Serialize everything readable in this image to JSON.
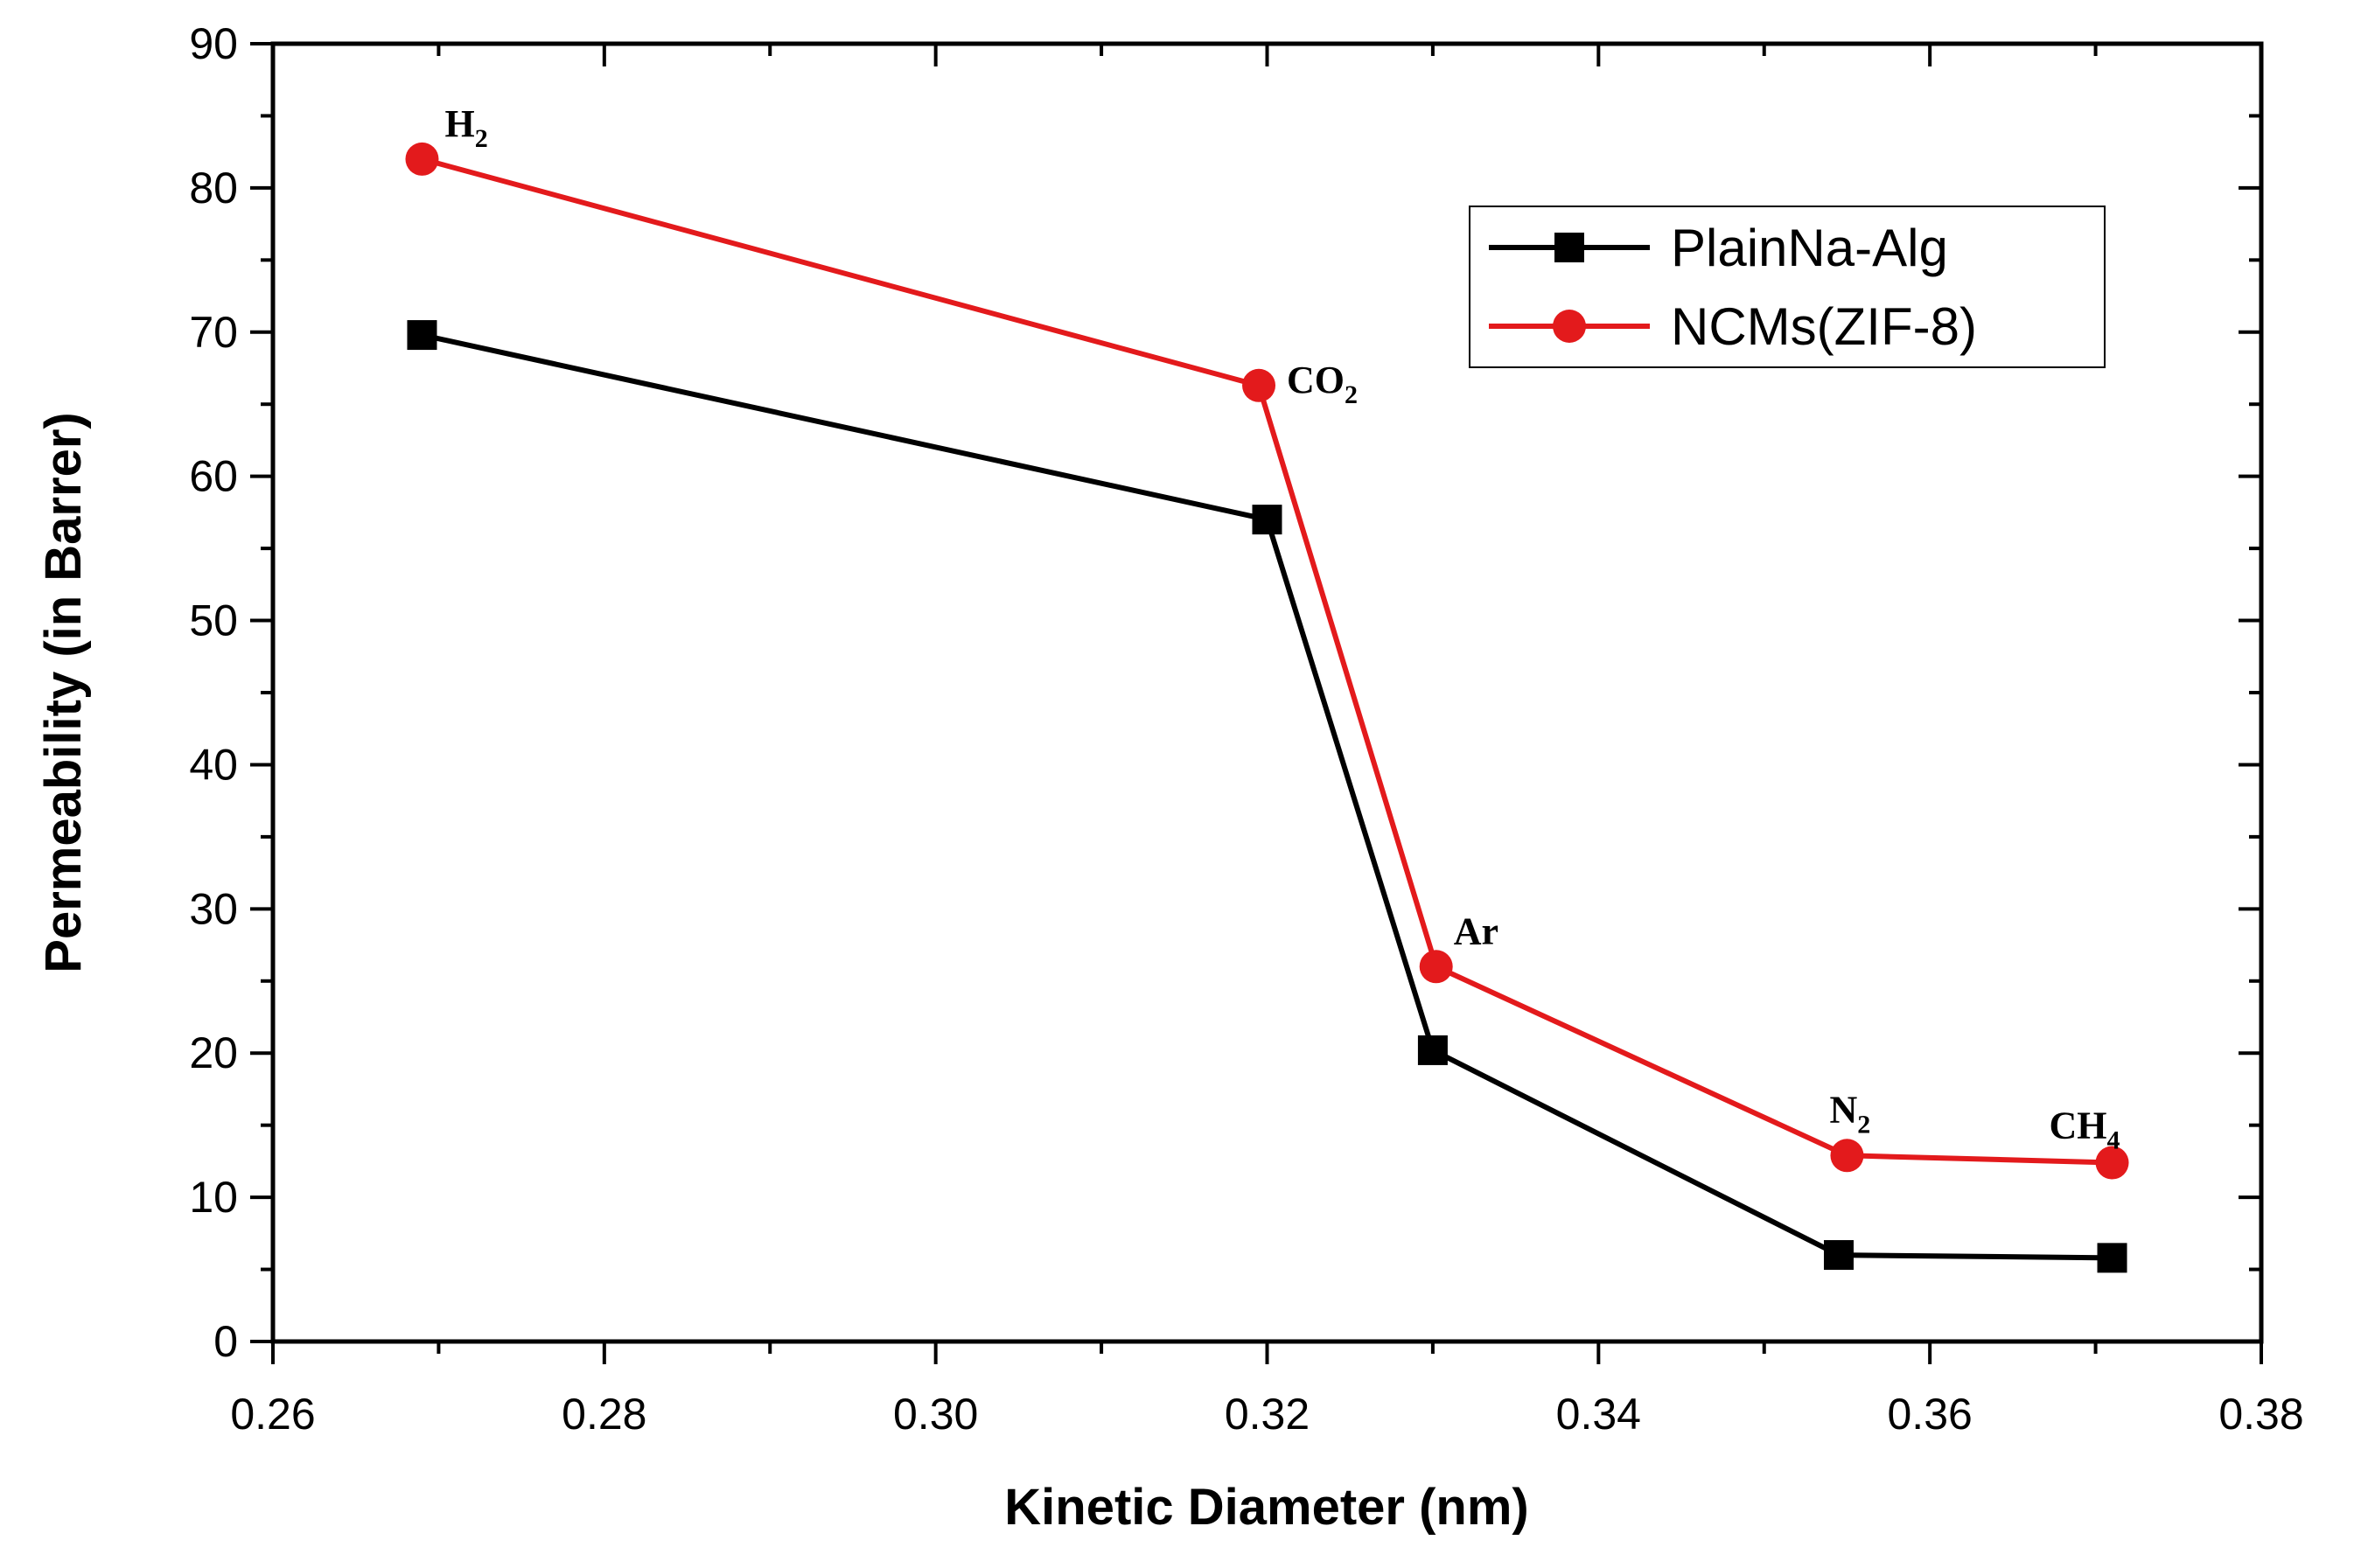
{
  "chart_data": {
    "type": "line",
    "xlabel": "Kinetic Diameter (nm)",
    "ylabel": "Permeability (in Barrer)",
    "xlim": [
      0.26,
      0.38
    ],
    "ylim": [
      0,
      90
    ],
    "xticks": [
      "0.26",
      "0.28",
      "0.30",
      "0.32",
      "0.34",
      "0.36",
      "0.38"
    ],
    "yticks": [
      "0",
      "10",
      "20",
      "30",
      "40",
      "50",
      "60",
      "70",
      "80",
      "90"
    ],
    "grid": false,
    "legend_position": "top-right",
    "series": [
      {
        "name": "PlainNa-Alg",
        "color": "#000000",
        "marker": "square",
        "x": [
          0.269,
          0.32,
          0.33,
          0.3545,
          0.371
        ],
        "values": [
          69.8,
          57.0,
          20.2,
          6.0,
          5.8
        ]
      },
      {
        "name": "NCMs(ZIF-8)",
        "color": "#e31a1c",
        "marker": "circle",
        "x": [
          0.269,
          0.3195,
          0.3302,
          0.355,
          0.371
        ],
        "values": [
          82.0,
          66.3,
          26.0,
          12.9,
          12.4
        ]
      }
    ],
    "annotations": [
      {
        "base": "H",
        "sub": "2",
        "x": 0.269,
        "y": 82.0
      },
      {
        "base": "CO",
        "sub": "2",
        "x": 0.3195,
        "y": 66.3
      },
      {
        "base": "Ar",
        "sub": "",
        "x": 0.3302,
        "y": 26.0
      },
      {
        "base": "N",
        "sub": "2",
        "x": 0.355,
        "y": 12.9
      },
      {
        "base": "CH",
        "sub": "4",
        "x": 0.371,
        "y": 12.4
      }
    ]
  }
}
